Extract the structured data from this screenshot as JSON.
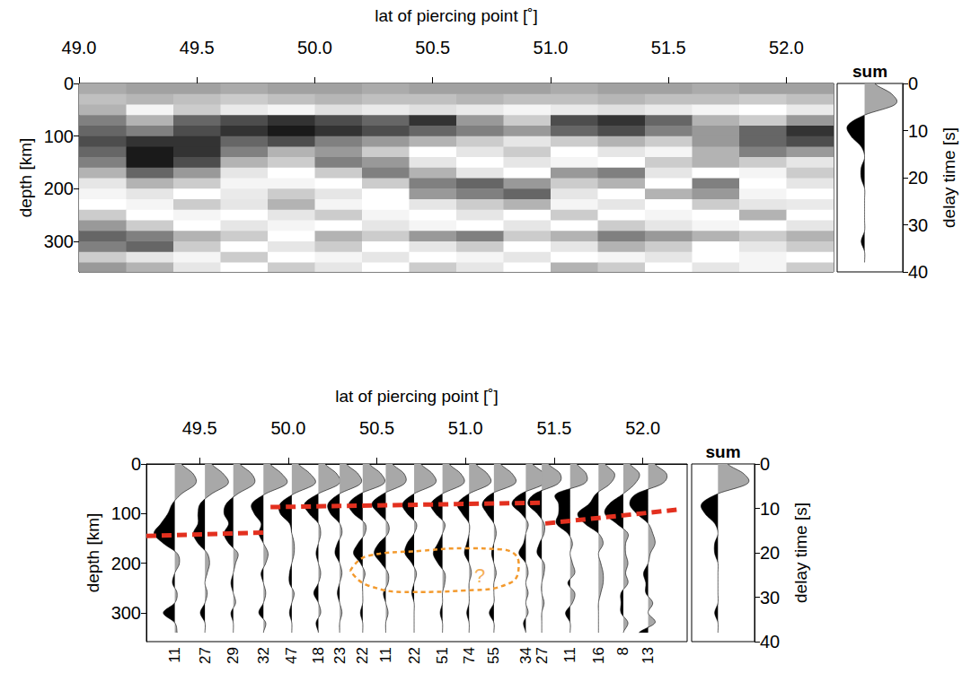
{
  "chart_data": [
    {
      "type": "heatmap",
      "x_label": "lat of piercing point [˚]",
      "y_label": "depth [km]",
      "y2_label": "delay time [s]",
      "xlim": [
        49.0,
        52.2
      ],
      "xticks": [
        {
          "value": 49,
          "label": "49.0"
        },
        49.5,
        {
          "value": 50,
          "label": "50.0"
        },
        50.5,
        {
          "value": 51,
          "label": "51.0"
        },
        51.5,
        {
          "value": 52,
          "label": "52.0"
        }
      ],
      "ylim": [
        0,
        358
      ],
      "yticks": [
        0,
        100,
        200,
        300
      ],
      "y2lim": [
        0,
        40
      ],
      "y2ticks": [
        0,
        10,
        20,
        30,
        40
      ],
      "x": [
        49.1,
        49.3,
        49.5,
        49.7,
        49.9,
        50.1,
        50.3,
        50.5,
        50.7,
        50.9,
        51.1,
        51.3,
        51.5,
        51.7,
        51.9,
        52.1
      ],
      "y": [
        10,
        30,
        50,
        70,
        90,
        110,
        130,
        150,
        170,
        190,
        210,
        230,
        250,
        270,
        290,
        310,
        330,
        350
      ],
      "cells": [
        [
          0.8,
          0.9,
          0.9,
          0.8,
          0.9,
          0.9,
          0.8,
          0.9,
          0.9,
          0.9,
          0.8,
          0.9,
          0.9,
          0.8,
          0.9,
          0.9
        ],
        [
          0.6,
          0.7,
          0.6,
          0.5,
          0.6,
          0.7,
          0.6,
          0.6,
          0.7,
          0.6,
          0.6,
          0.7,
          0.6,
          0.6,
          0.5,
          0.6
        ],
        [
          -0.3,
          0.1,
          -0.2,
          0.2,
          0.1,
          0.3,
          0.2,
          0.3,
          0.2,
          0.1,
          0.2,
          0.3,
          0.2,
          0.1,
          0.0,
          0.2
        ],
        [
          -0.5,
          -0.3,
          -0.6,
          -0.7,
          -0.8,
          -0.7,
          -0.6,
          -0.8,
          -0.4,
          -0.2,
          -0.7,
          -0.8,
          -0.6,
          -0.3,
          -0.2,
          -0.4
        ],
        [
          -0.6,
          -0.5,
          -0.7,
          -0.8,
          -0.9,
          -0.8,
          -0.7,
          -0.6,
          -0.5,
          -0.4,
          -0.6,
          -0.7,
          -0.5,
          -0.4,
          -0.6,
          -0.8
        ],
        [
          -0.7,
          -0.8,
          -0.8,
          -0.6,
          -0.7,
          -0.5,
          -0.4,
          -0.3,
          -0.2,
          -0.1,
          -0.2,
          -0.3,
          -0.2,
          -0.4,
          -0.6,
          -0.7
        ],
        [
          -0.6,
          -0.9,
          -0.8,
          -0.5,
          -0.3,
          -0.4,
          -0.2,
          0.0,
          -0.1,
          -0.2,
          0.0,
          -0.1,
          0.1,
          -0.3,
          -0.5,
          -0.4
        ],
        [
          -0.5,
          -0.9,
          -0.7,
          -0.3,
          -0.2,
          -0.5,
          -0.4,
          -0.1,
          0.0,
          -0.1,
          0.1,
          0.0,
          -0.2,
          -0.3,
          -0.2,
          -0.1
        ],
        [
          -0.3,
          -0.6,
          -0.4,
          -0.1,
          0.0,
          -0.2,
          -0.5,
          -0.3,
          -0.1,
          0.0,
          -0.4,
          -0.5,
          -0.1,
          0.0,
          0.1,
          -0.2
        ],
        [
          -0.1,
          -0.3,
          -0.2,
          0.1,
          0.1,
          0.0,
          -0.2,
          -0.5,
          -0.6,
          -0.4,
          -0.2,
          -0.3,
          0.0,
          -0.5,
          0.0,
          -0.1
        ],
        [
          0.1,
          -0.1,
          0.0,
          0.2,
          -0.2,
          -0.1,
          0.0,
          -0.4,
          -0.5,
          -0.6,
          -0.1,
          0.0,
          -0.3,
          -0.4,
          0.1,
          0.0
        ],
        [
          0.0,
          0.1,
          -0.2,
          -0.1,
          -0.3,
          0.1,
          0.0,
          -0.1,
          -0.2,
          -0.3,
          0.1,
          -0.1,
          0.0,
          -0.2,
          -0.1,
          0.2
        ],
        [
          -0.2,
          0.0,
          0.1,
          0.0,
          -0.1,
          -0.2,
          0.1,
          0.0,
          -0.1,
          0.0,
          -0.2,
          0.0,
          0.1,
          0.0,
          -0.3,
          0.0
        ],
        [
          -0.4,
          -0.2,
          0.0,
          -0.1,
          0.1,
          0.0,
          -0.1,
          0.1,
          0.0,
          -0.1,
          0.0,
          -0.2,
          -0.1,
          0.1,
          0.0,
          -0.1
        ],
        [
          -0.6,
          -0.5,
          -0.3,
          -0.2,
          0.0,
          -0.3,
          -0.2,
          -0.4,
          -0.5,
          -0.2,
          -0.3,
          -0.5,
          -0.4,
          -0.3,
          -0.2,
          -0.3
        ],
        [
          -0.5,
          -0.6,
          -0.2,
          0.0,
          -0.1,
          -0.2,
          0.0,
          -0.1,
          -0.2,
          0.0,
          -0.1,
          -0.3,
          -0.2,
          0.0,
          -0.1,
          -0.2
        ],
        [
          -0.2,
          -0.1,
          0.1,
          -0.2,
          0.0,
          0.1,
          -0.1,
          0.0,
          0.1,
          -0.1,
          0.0,
          0.1,
          -0.1,
          0.0,
          0.1,
          0.0
        ],
        [
          -0.4,
          -0.3,
          -0.1,
          0.0,
          -0.2,
          -0.1,
          0.0,
          -0.2,
          -0.1,
          0.0,
          -0.3,
          -0.2,
          0.0,
          -0.1,
          0.1,
          -0.2
        ]
      ],
      "sum": {
        "title": "sum",
        "depth": [
          0,
          20,
          40,
          60,
          80,
          100,
          120,
          140,
          160,
          180,
          200,
          220,
          240,
          260,
          280,
          300,
          320,
          340
        ],
        "values": [
          0.3,
          0.8,
          0.9,
          0.0,
          -0.5,
          -0.4,
          -0.1,
          0.0,
          -0.1,
          -0.1,
          0.0,
          0.0,
          0.0,
          0.0,
          0.0,
          -0.1,
          0.0,
          0.0
        ]
      }
    },
    {
      "type": "wiggle",
      "x_label": "lat of piercing point [˚]",
      "y_label": "depth [km]",
      "y2_label": "delay time [s]",
      "xlim": [
        49.2,
        52.25
      ],
      "xticks": [
        49.5,
        {
          "value": 50,
          "label": "50.0"
        },
        50.5,
        {
          "value": 51,
          "label": "51.0"
        },
        51.5,
        {
          "value": 52,
          "label": "52.0"
        }
      ],
      "ylim": [
        0,
        358
      ],
      "yticks": [
        0,
        100,
        200,
        300
      ],
      "y2lim": [
        0,
        40
      ],
      "y2ticks": [
        0,
        10,
        20,
        30,
        40
      ],
      "depth": [
        0,
        20,
        40,
        60,
        80,
        100,
        120,
        140,
        160,
        180,
        200,
        220,
        240,
        260,
        280,
        300,
        320,
        340
      ],
      "traces": [
        {
          "lat": 49.36,
          "count": 11,
          "values": [
            0.3,
            0.8,
            0.9,
            0.3,
            -0.1,
            -0.3,
            -0.6,
            -0.9,
            -0.5,
            0.1,
            0.2,
            0.0,
            -0.1,
            0.1,
            0.0,
            -0.5,
            0.0,
            0.1
          ]
        },
        {
          "lat": 49.53,
          "count": 27,
          "values": [
            0.3,
            0.8,
            1.0,
            0.3,
            -0.2,
            -0.3,
            -0.3,
            -0.5,
            -0.3,
            0.1,
            0.2,
            0.1,
            0.0,
            0.1,
            0.0,
            -0.2,
            0.0,
            0.0
          ]
        },
        {
          "lat": 49.69,
          "count": 29,
          "values": [
            0.3,
            0.8,
            0.9,
            0.2,
            -0.3,
            -0.4,
            -0.2,
            -0.4,
            -0.2,
            0.2,
            0.1,
            0.0,
            -0.1,
            0.0,
            0.1,
            -0.1,
            0.0,
            0.0
          ]
        },
        {
          "lat": 49.86,
          "count": 32,
          "values": [
            0.3,
            0.8,
            1.0,
            0.1,
            -0.5,
            -0.4,
            -0.1,
            -0.2,
            0.0,
            0.2,
            0.1,
            -0.1,
            0.0,
            0.1,
            0.0,
            -0.2,
            0.1,
            0.0
          ]
        },
        {
          "lat": 50.02,
          "count": 47,
          "values": [
            0.3,
            0.8,
            1.0,
            0.1,
            -0.5,
            -0.5,
            -0.1,
            0.0,
            0.1,
            0.1,
            0.0,
            -0.1,
            -0.1,
            0.1,
            0.0,
            -0.1,
            0.0,
            0.0
          ]
        },
        {
          "lat": 50.17,
          "count": 18,
          "values": [
            0.3,
            0.8,
            0.9,
            0.0,
            -0.6,
            -0.4,
            0.0,
            0.1,
            0.0,
            -0.1,
            0.0,
            0.1,
            0.0,
            -0.2,
            0.0,
            0.1,
            -0.1,
            0.0
          ]
        },
        {
          "lat": 50.29,
          "count": 23,
          "values": [
            0.3,
            0.8,
            0.9,
            0.0,
            -0.5,
            -0.4,
            0.0,
            0.1,
            -0.1,
            -0.2,
            0.0,
            0.1,
            0.0,
            -0.1,
            0.0,
            0.1,
            0.0,
            0.0
          ]
        },
        {
          "lat": 50.42,
          "count": 22,
          "values": [
            0.3,
            0.8,
            0.9,
            -0.1,
            -0.6,
            -0.4,
            0.1,
            0.1,
            -0.2,
            -0.4,
            -0.1,
            0.1,
            0.0,
            0.0,
            0.0,
            -0.1,
            0.0,
            0.0
          ]
        },
        {
          "lat": 50.55,
          "count": 11,
          "values": [
            0.3,
            0.8,
            0.8,
            -0.1,
            -0.6,
            -0.3,
            0.1,
            0.1,
            -0.3,
            -0.5,
            -0.2,
            0.1,
            0.1,
            -0.1,
            0.0,
            0.1,
            0.0,
            0.0
          ]
        },
        {
          "lat": 50.71,
          "count": 22,
          "values": [
            0.3,
            0.8,
            0.9,
            0.0,
            -0.5,
            -0.3,
            0.1,
            0.0,
            -0.3,
            -0.4,
            -0.1,
            0.1,
            0.0,
            -0.1,
            0.0,
            0.0,
            0.0,
            0.0
          ]
        },
        {
          "lat": 50.87,
          "count": 51,
          "values": [
            0.3,
            0.8,
            0.9,
            0.0,
            -0.5,
            -0.3,
            0.1,
            0.0,
            -0.2,
            -0.4,
            -0.2,
            0.1,
            0.1,
            0.0,
            0.0,
            -0.1,
            0.0,
            0.0
          ]
        },
        {
          "lat": 51.02,
          "count": 74,
          "values": [
            0.3,
            0.8,
            0.9,
            0.0,
            -0.5,
            -0.3,
            0.0,
            0.0,
            -0.1,
            -0.2,
            0.0,
            0.1,
            0.0,
            0.0,
            0.0,
            -0.1,
            0.0,
            0.0
          ]
        },
        {
          "lat": 51.16,
          "count": 55,
          "values": [
            0.3,
            0.8,
            0.9,
            -0.1,
            -0.5,
            -0.3,
            0.0,
            0.1,
            0.0,
            -0.1,
            0.0,
            0.1,
            0.0,
            0.0,
            0.0,
            -0.2,
            0.0,
            0.0
          ]
        },
        {
          "lat": 51.34,
          "count": 34,
          "values": [
            0.3,
            0.8,
            0.8,
            -0.2,
            -0.6,
            -0.2,
            0.1,
            0.0,
            -0.1,
            -0.3,
            0.0,
            0.1,
            0.0,
            0.1,
            0.0,
            0.1,
            -0.1,
            0.0
          ]
        },
        {
          "lat": 51.43,
          "count": 27,
          "values": [
            0.3,
            0.8,
            0.7,
            -0.3,
            -0.6,
            -0.2,
            0.1,
            0.1,
            -0.1,
            -0.2,
            0.1,
            0.1,
            0.0,
            0.0,
            0.1,
            0.0,
            0.0,
            0.0
          ]
        },
        {
          "lat": 51.59,
          "count": 11,
          "values": [
            0.3,
            0.7,
            0.6,
            -0.6,
            -0.5,
            -0.5,
            -0.6,
            -0.1,
            0.1,
            0.0,
            0.1,
            0.2,
            -0.1,
            0.2,
            0.1,
            -0.2,
            0.0,
            0.0
          ]
        },
        {
          "lat": 51.75,
          "count": 16,
          "values": [
            0.3,
            0.7,
            0.5,
            -0.1,
            -0.4,
            -0.9,
            -0.6,
            0.0,
            0.2,
            0.0,
            0.1,
            0.2,
            0.2,
            0.1,
            0.0,
            0.0,
            0.0,
            0.0
          ]
        },
        {
          "lat": 51.89,
          "count": 8,
          "values": [
            0.3,
            0.7,
            0.5,
            0.0,
            -0.6,
            -0.8,
            -0.3,
            0.2,
            0.1,
            0.1,
            0.2,
            0.1,
            0.2,
            -0.1,
            -0.1,
            -0.1,
            0.2,
            0.0
          ]
        },
        {
          "lat": 52.03,
          "count": 13,
          "values": [
            0.3,
            0.8,
            0.6,
            -0.5,
            -0.8,
            -0.5,
            0.0,
            0.2,
            0.3,
            0.1,
            0.0,
            -0.2,
            -0.1,
            -0.1,
            0.2,
            0.0,
            0.3,
            -0.4
          ]
        }
      ],
      "series": [
        {
          "type": "line",
          "color": "#e3301f",
          "line_style": "dashed",
          "x": [
            49.2,
            49.88
          ],
          "values": [
            145,
            138
          ]
        },
        {
          "type": "line",
          "color": "#e3301f",
          "line_style": "dashed",
          "x": [
            49.9,
            51.45
          ],
          "values": [
            87,
            78
          ]
        },
        {
          "type": "line",
          "color": "#e3301f",
          "line_style": "dashed",
          "x": [
            51.45,
            52.2
          ],
          "values": [
            120,
            92
          ]
        },
        {
          "type": "closed_curve",
          "color": "#f39a2e",
          "line_style": "dotted",
          "x": [
            50.35,
            50.45,
            50.75,
            51.0,
            51.2,
            51.3,
            51.25,
            51.0,
            50.7,
            50.45
          ],
          "values": [
            215,
            185,
            175,
            170,
            172,
            200,
            240,
            255,
            258,
            245
          ]
        }
      ],
      "annotations": [
        {
          "text": "?",
          "x": 51.08,
          "y": 225,
          "color": "#f39a2e"
        }
      ],
      "sum": {
        "title": "sum",
        "depth": [
          0,
          20,
          40,
          60,
          80,
          100,
          120,
          140,
          160,
          180,
          200,
          220,
          240,
          260,
          280,
          300,
          320,
          340
        ],
        "values": [
          0.3,
          0.8,
          0.9,
          0.0,
          -0.5,
          -0.4,
          -0.1,
          0.0,
          -0.1,
          -0.1,
          0.0,
          0.0,
          0.0,
          0.0,
          0.0,
          -0.1,
          0.0,
          0.0
        ]
      }
    }
  ]
}
